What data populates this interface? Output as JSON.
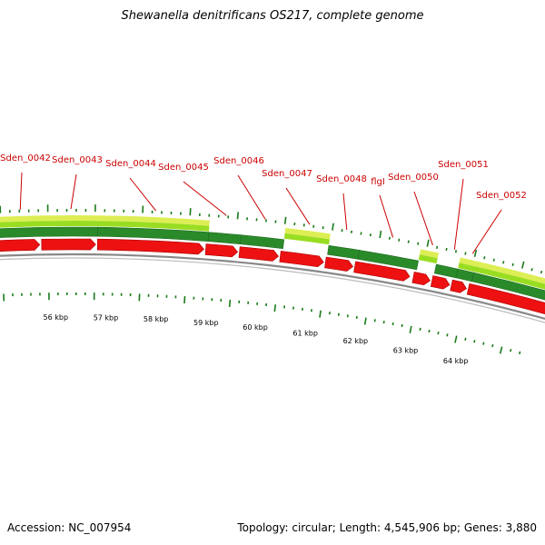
{
  "title": "Shewanella denitrificans OS217, complete genome",
  "footer": {
    "accession": "Accession: NC_007954",
    "summary": "Topology: circular; Length: 4,545,906 bp; Genes: 3,880"
  },
  "colors": {
    "gene_label": "#cc0000",
    "cds_red": "#ee1111",
    "cds_red_dark": "#aa0000",
    "gene_green": "#2a8a2a",
    "gene_green_dark": "#1f6a1f",
    "gc_yellow": "#ddee55",
    "gc_lime": "#99dd22",
    "backbone": "#888888",
    "tick": "#1a7a1a"
  },
  "scale_labels": [
    "56 kbp",
    "57 kbp",
    "58 kbp",
    "59 kbp",
    "60 kbp",
    "61 kbp",
    "62 kbp",
    "63 kbp",
    "64 kbp"
  ],
  "gene_labels": [
    "Sden_0042",
    "Sden_0043",
    "Sden_0044",
    "Sden_0045",
    "Sden_0046",
    "Sden_0047",
    "Sden_0048",
    "flgI",
    "Sden_0050",
    "Sden_0051",
    "Sden_0052"
  ]
}
